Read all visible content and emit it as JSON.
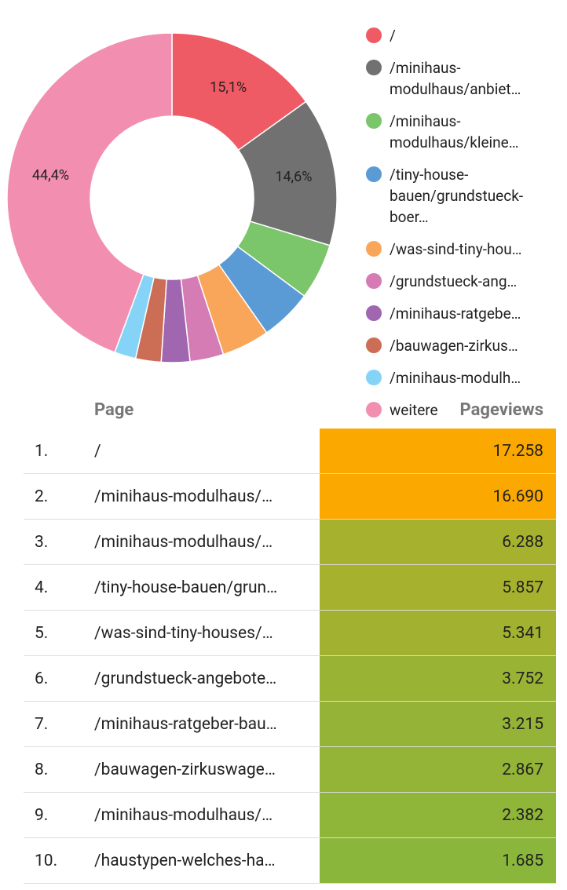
{
  "chart_data": {
    "type": "donut",
    "categories": [
      "/",
      "/minihaus-modulhaus/anbiet…",
      "/minihaus-modulhaus/kleine…",
      "/tiny-house-bauen/grundstueck-boer…",
      "/was-sind-tiny-hou…",
      "/grundstueck-ang…",
      "/minihaus-ratgebe…",
      "/bauwagen-zirkus…",
      "/minihaus-modulh…",
      "weitere"
    ],
    "values": [
      15.1,
      14.6,
      5.5,
      5.1,
      4.7,
      3.3,
      2.8,
      2.5,
      2.1,
      44.4
    ],
    "value_labels": [
      "15,1%",
      "14,6%",
      null,
      null,
      null,
      null,
      null,
      null,
      null,
      "44,4%"
    ],
    "colors": [
      "#ef5b65",
      "#717171",
      "#7bc56a",
      "#5b9bd5",
      "#f9a65a",
      "#d57cb5",
      "#a066b0",
      "#cc6d56",
      "#85d4f7",
      "#f28fb1"
    ],
    "legend": "right"
  },
  "table": {
    "header": [
      "Page",
      "Pageviews"
    ],
    "rows": [
      [
        "1.",
        "/",
        "17.258"
      ],
      [
        "2.",
        "/minihaus-modulhaus/…",
        "16.690"
      ],
      [
        "3.",
        "/minihaus-modulhaus/…",
        "6.288"
      ],
      [
        "4.",
        "/tiny-house-bauen/grun…",
        "5.857"
      ],
      [
        "5.",
        "/was-sind-tiny-houses/…",
        "5.341"
      ],
      [
        "6.",
        "/grundstueck-angebote…",
        "3.752"
      ],
      [
        "7.",
        "/minihaus-ratgeber-bau…",
        "3.215"
      ],
      [
        "8.",
        "/bauwagen-zirkuswage…",
        "2.867"
      ],
      [
        "9.",
        "/minihaus-modulhaus/…",
        "2.382"
      ],
      [
        "10.",
        "/haustypen-welches-ha…",
        "1.685"
      ]
    ],
    "row_colors": [
      "#fba800",
      "#fba800",
      "#a6b22d",
      "#a6b22d",
      "#a2b230",
      "#99b334",
      "#95b336",
      "#93b437",
      "#8fb539",
      "#8ab63c"
    ]
  }
}
